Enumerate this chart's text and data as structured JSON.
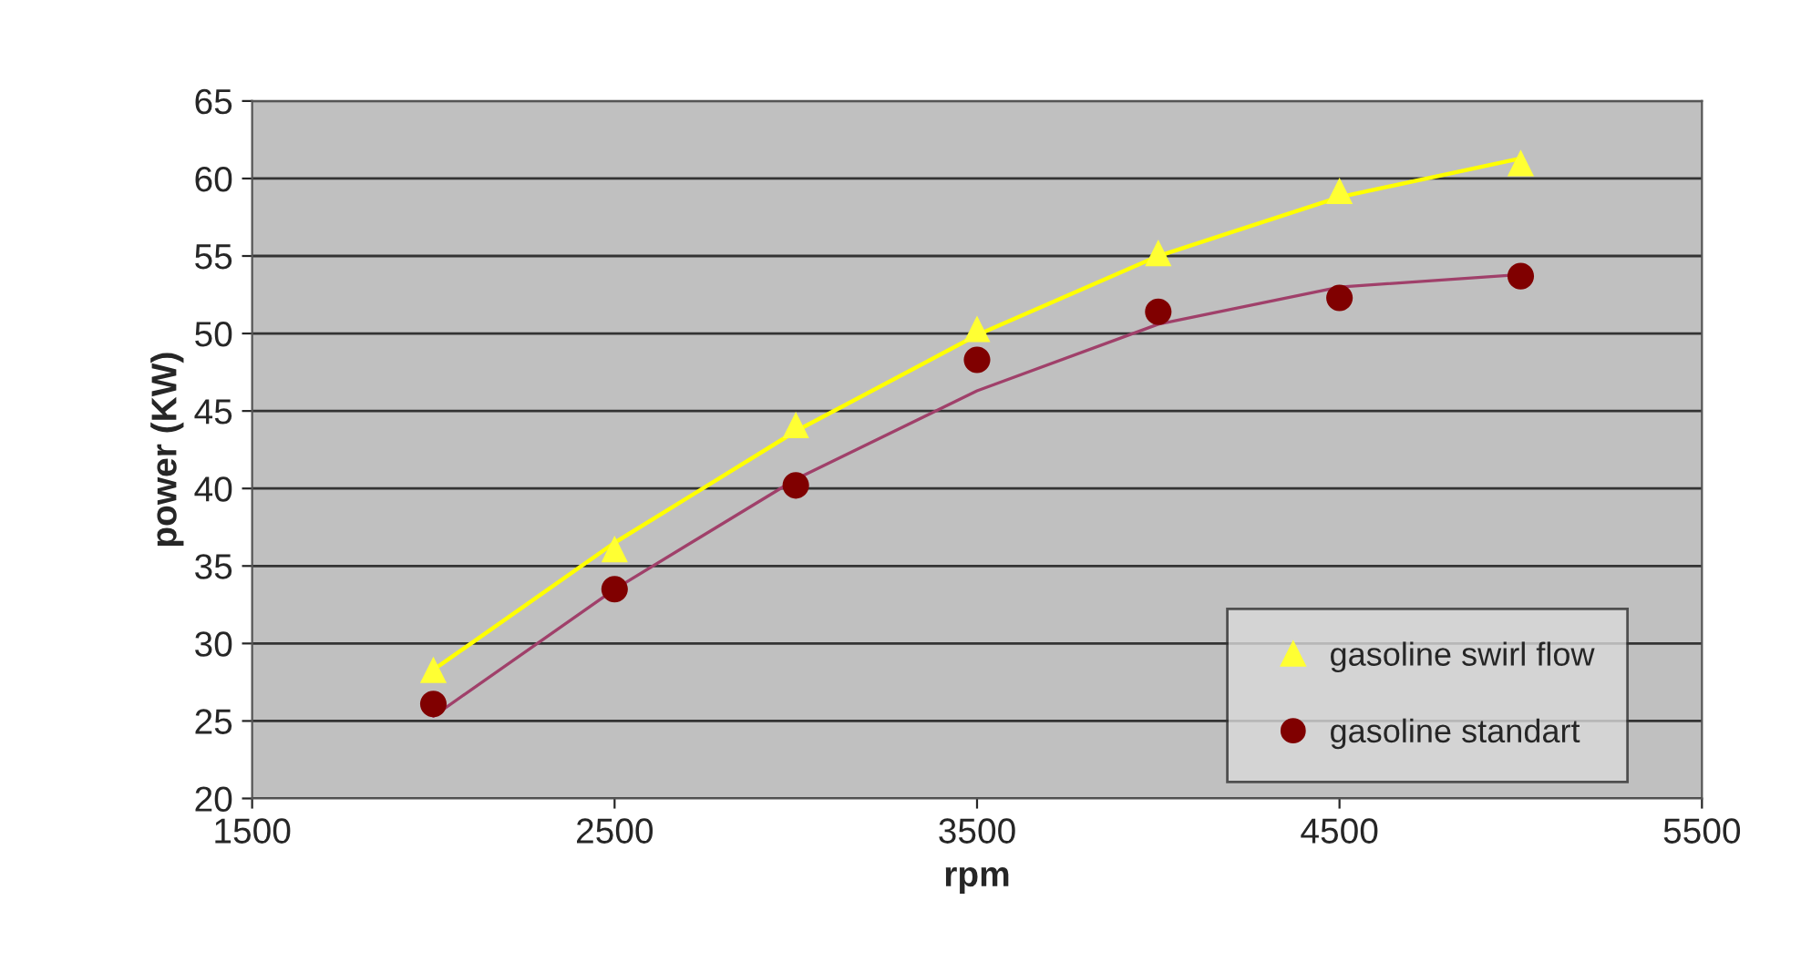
{
  "chart_data": {
    "type": "scatter",
    "xlabel": "rpm",
    "ylabel": "power (KW)",
    "xlim": [
      1500,
      5500
    ],
    "xticks": [
      1500,
      2500,
      3500,
      4500,
      5500
    ],
    "ylim": [
      20,
      65
    ],
    "yticks": [
      20,
      25,
      30,
      35,
      40,
      45,
      50,
      55,
      60,
      65
    ],
    "grid": "y",
    "legend": "bottom right",
    "series": [
      {
        "type": "line",
        "color": "#ffff00",
        "marker": "none",
        "x": [
          2000,
          2500,
          3000,
          3500,
          4000,
          4500,
          5000
        ],
        "values": [
          28.3,
          36.5,
          43.7,
          49.9,
          55.0,
          58.8,
          61.3
        ]
      },
      {
        "type": "line",
        "color": "#a0406a",
        "marker": "none",
        "x": [
          2000,
          2500,
          3000,
          3500,
          4000,
          4500,
          5000
        ],
        "values": [
          25.3,
          33.5,
          40.6,
          46.3,
          50.6,
          53.0,
          53.8
        ]
      },
      {
        "name": "gasoline swirl flow",
        "color": "#ffff33",
        "marker": "triangle",
        "x": [
          2000,
          2500,
          3000,
          3500,
          4000,
          4500,
          5000
        ],
        "values": [
          28.3,
          36.1,
          44.1,
          50.3,
          55.2,
          59.2,
          61.0
        ]
      },
      {
        "name": "gasoline standart",
        "color": "#800000",
        "marker": "circle",
        "x": [
          2000,
          2500,
          3000,
          3500,
          4000,
          4500,
          5000
        ],
        "values": [
          26.1,
          33.5,
          40.2,
          48.3,
          51.4,
          52.3,
          53.7
        ]
      }
    ]
  }
}
